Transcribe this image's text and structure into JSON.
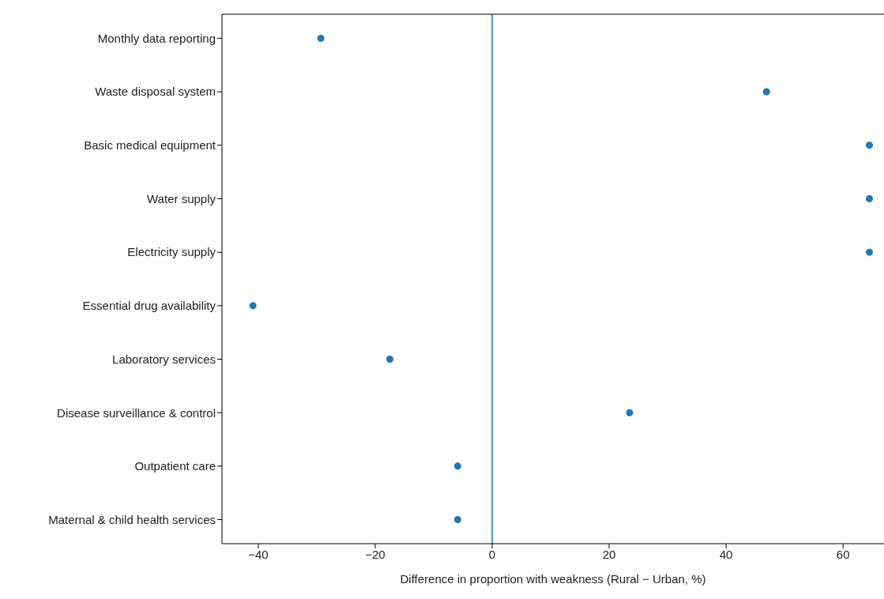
{
  "chart_data": {
    "type": "scatter",
    "orientation": "horizontal",
    "xlabel": "Difference in proportion with weakness (Rural − Urban, %)",
    "categories": [
      "Monthly data reporting",
      "Waste disposal system",
      "Basic medical equipment",
      "Water supply",
      "Electricity supply",
      "Essential drug availability",
      "Laboratory services",
      "Disease surveillance & control",
      "Outpatient care",
      "Maternal & child health services"
    ],
    "series": [
      {
        "color": "#1f77b4",
        "values": [
          -29.3,
          46.9,
          64.5,
          64.5,
          64.5,
          -40.9,
          -17.5,
          23.5,
          -5.9,
          -5.9
        ]
      }
    ],
    "xlim": [
      -46.2,
      67
    ],
    "xticks": [
      {
        "value": -40,
        "label": "−40"
      },
      {
        "value": -20,
        "label": "−20"
      },
      0,
      20,
      40,
      60
    ],
    "ref_lines": [
      {
        "axis": "x",
        "value": 0,
        "color": "#1f77b4"
      }
    ],
    "marker": "circle",
    "grid": false,
    "legend": false
  }
}
